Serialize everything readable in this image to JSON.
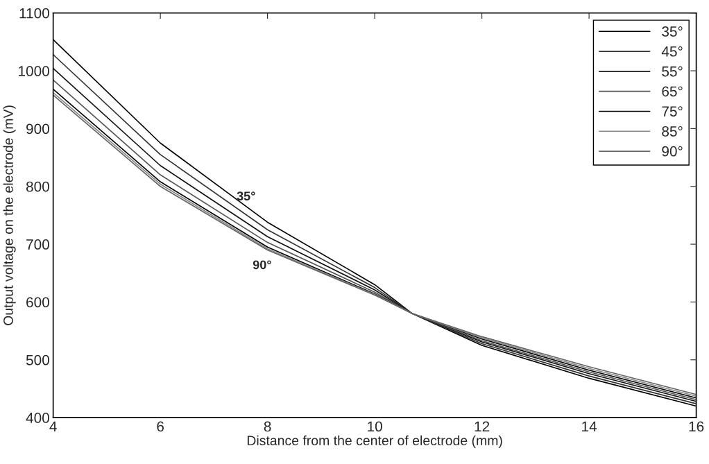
{
  "chart_data": {
    "type": "line",
    "xlabel": "Distance from the center of electrode (mm)",
    "ylabel": "Output voltage on the electrode (mV)",
    "x": [
      4,
      6,
      8,
      10,
      10.7,
      12,
      14,
      16
    ],
    "series": [
      {
        "name": "35°",
        "color": "#000000",
        "values": [
          1054,
          875,
          738,
          630,
          580,
          525,
          468,
          420
        ]
      },
      {
        "name": "45°",
        "color": "#333333",
        "values": [
          1028,
          855,
          725,
          625,
          580,
          528,
          472,
          424
        ]
      },
      {
        "name": "55°",
        "color": "#111111",
        "values": [
          1004,
          836,
          713,
          621,
          580,
          531,
          476,
          428
        ]
      },
      {
        "name": "65°",
        "color": "#555555",
        "values": [
          984,
          820,
          703,
          617,
          580,
          533,
          479,
          431
        ]
      },
      {
        "name": "75°",
        "color": "#000000",
        "values": [
          968,
          808,
          695,
          614,
          580,
          536,
          482,
          434
        ]
      },
      {
        "name": "85°",
        "color": "#888888",
        "values": [
          962,
          804,
          692,
          613,
          580,
          538,
          485,
          437
        ]
      },
      {
        "name": "90°",
        "color": "#666666",
        "values": [
          958,
          800,
          690,
          612,
          580,
          540,
          488,
          440
        ]
      }
    ],
    "annotations": [
      "35°",
      "90°"
    ],
    "xlim": [
      4,
      16
    ],
    "xticks": [
      4,
      6,
      8,
      10,
      12,
      14,
      16
    ],
    "ylim": [
      400,
      1100
    ],
    "yticks": [
      400,
      500,
      600,
      700,
      800,
      900,
      1000,
      1100
    ],
    "legend": "top right",
    "grid": false
  }
}
